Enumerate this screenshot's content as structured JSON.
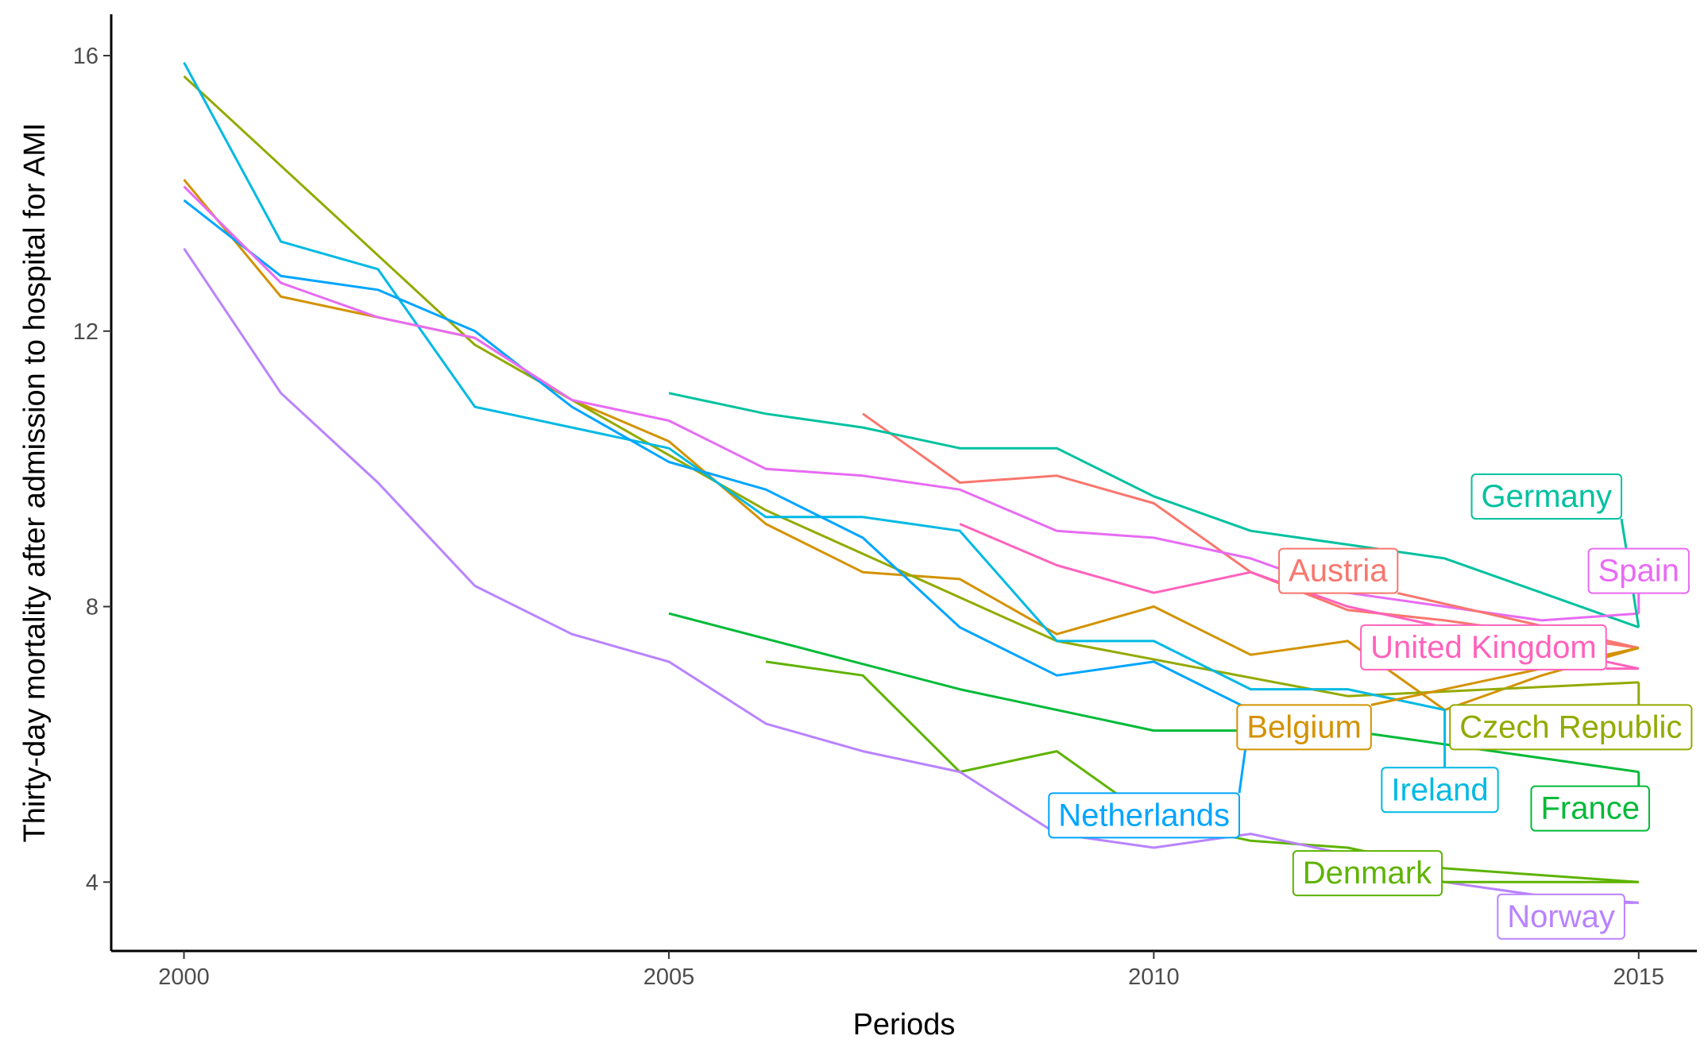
{
  "chart_data": {
    "type": "line",
    "title": "",
    "xlabel": "Periods",
    "ylabel": "Thirty-day mortality after admission to hospital for AMI",
    "xlim": [
      1999.25,
      2015.6
    ],
    "ylim": [
      3.0,
      16.6
    ],
    "x_ticks": [
      2000,
      2005,
      2010,
      2015
    ],
    "y_ticks": [
      4,
      8,
      12,
      16
    ],
    "grid": false,
    "legend": "none (direct labels)",
    "series": [
      {
        "name": "Austria",
        "color": "#F8766D",
        "x": [
          2007,
          2008,
          2009,
          2010,
          2011,
          2012,
          2013,
          2014,
          2015
        ],
        "y": [
          10.8,
          9.8,
          9.9,
          9.5,
          8.5,
          7.95,
          7.8,
          7.6,
          7.4
        ],
        "label_x": 2011.9,
        "label_y": 8.53
      },
      {
        "name": "Belgium",
        "color": "#D39200",
        "x": [
          2000,
          2001,
          2002,
          2003,
          2004,
          2005,
          2006,
          2007,
          2008,
          2009,
          2010,
          2011,
          2012,
          2013,
          2014,
          2015
        ],
        "y": [
          14.2,
          12.5,
          12.2,
          11.9,
          11.0,
          10.4,
          9.2,
          8.5,
          8.4,
          7.6,
          8.0,
          7.3,
          7.5,
          6.5,
          7.0,
          7.4
        ],
        "label_x": 2011.55,
        "label_y": 6.26
      },
      {
        "name": "Czech Republic",
        "color": "#93AA00",
        "x": [
          2000,
          2003,
          2006,
          2009,
          2012,
          2015
        ],
        "y": [
          15.7,
          11.8,
          9.4,
          7.5,
          6.7,
          6.9
        ],
        "label_x": 2014.3,
        "label_y": 6.26
      },
      {
        "name": "Denmark",
        "color": "#5EB300",
        "x": [
          2006,
          2007,
          2008,
          2009,
          2010,
          2011,
          2012,
          2013,
          2014,
          2015
        ],
        "y": [
          7.2,
          7.0,
          5.6,
          5.9,
          4.9,
          4.6,
          4.5,
          4.2,
          4.1,
          4.0
        ],
        "label_x": 2012.2,
        "label_y": 4.14
      },
      {
        "name": "France",
        "color": "#00BA38",
        "x": [
          2005,
          2008,
          2010,
          2012,
          2015
        ],
        "y": [
          7.9,
          6.8,
          6.2,
          6.2,
          5.6
        ],
        "label_x": 2014.5,
        "label_y": 5.08
      },
      {
        "name": "Germany",
        "color": "#00C19F",
        "x": [
          2005,
          2006,
          2007,
          2008,
          2009,
          2010,
          2011,
          2012,
          2013,
          2014,
          2015
        ],
        "y": [
          11.1,
          10.8,
          10.6,
          10.3,
          10.3,
          9.6,
          9.1,
          8.9,
          8.7,
          8.2,
          7.7
        ],
        "label_x": 2014.05,
        "label_y": 9.61
      },
      {
        "name": "Ireland",
        "color": "#00B9E3",
        "x": [
          2000,
          2001,
          2002,
          2003,
          2004,
          2005,
          2006,
          2007,
          2008,
          2009,
          2010,
          2011,
          2012,
          2013
        ],
        "y": [
          15.9,
          13.3,
          12.9,
          10.9,
          10.6,
          10.3,
          9.3,
          9.3,
          9.1,
          7.5,
          7.5,
          6.8,
          6.8,
          6.5
        ],
        "label_x": 2012.95,
        "label_y": 5.35
      },
      {
        "name": "Netherlands",
        "color": "#00A5FF",
        "x": [
          2000,
          2001,
          2002,
          2003,
          2004,
          2005,
          2006,
          2007,
          2008,
          2009,
          2010,
          2011
        ],
        "y": [
          13.9,
          12.8,
          12.6,
          12.0,
          10.9,
          10.1,
          9.7,
          9.0,
          7.7,
          7.0,
          7.2,
          6.5
        ],
        "label_x": 2009.9,
        "label_y": 4.98
      },
      {
        "name": "Norway",
        "color": "#B983FF",
        "x": [
          2000,
          2001,
          2002,
          2003,
          2004,
          2005,
          2006,
          2007,
          2008,
          2009,
          2010,
          2011,
          2012,
          2013,
          2014,
          2015
        ],
        "y": [
          13.2,
          11.1,
          9.8,
          8.3,
          7.6,
          7.2,
          6.3,
          5.9,
          5.6,
          4.7,
          4.5,
          4.7,
          4.4,
          4.0,
          3.8,
          3.7
        ],
        "label_x": 2014.2,
        "label_y": 3.51
      },
      {
        "name": "Spain",
        "color": "#E76BF3",
        "x": [
          2000,
          2001,
          2002,
          2003,
          2004,
          2005,
          2006,
          2007,
          2008,
          2009,
          2010,
          2011,
          2012,
          2013,
          2014,
          2015
        ],
        "y": [
          14.1,
          12.7,
          12.2,
          11.9,
          11.0,
          10.7,
          10.0,
          9.9,
          9.7,
          9.1,
          9.0,
          8.7,
          8.2,
          8.0,
          7.8,
          7.9
        ],
        "label_x": 2015.0,
        "label_y": 8.53
      },
      {
        "name": "United Kingdom",
        "color": "#FF62BC",
        "x": [
          2008,
          2009,
          2010,
          2011,
          2012,
          2013,
          2014,
          2015
        ],
        "y": [
          9.2,
          8.6,
          8.2,
          8.5,
          8.0,
          7.7,
          7.4,
          7.1
        ],
        "label_x": 2013.4,
        "label_y": 7.42
      }
    ]
  }
}
